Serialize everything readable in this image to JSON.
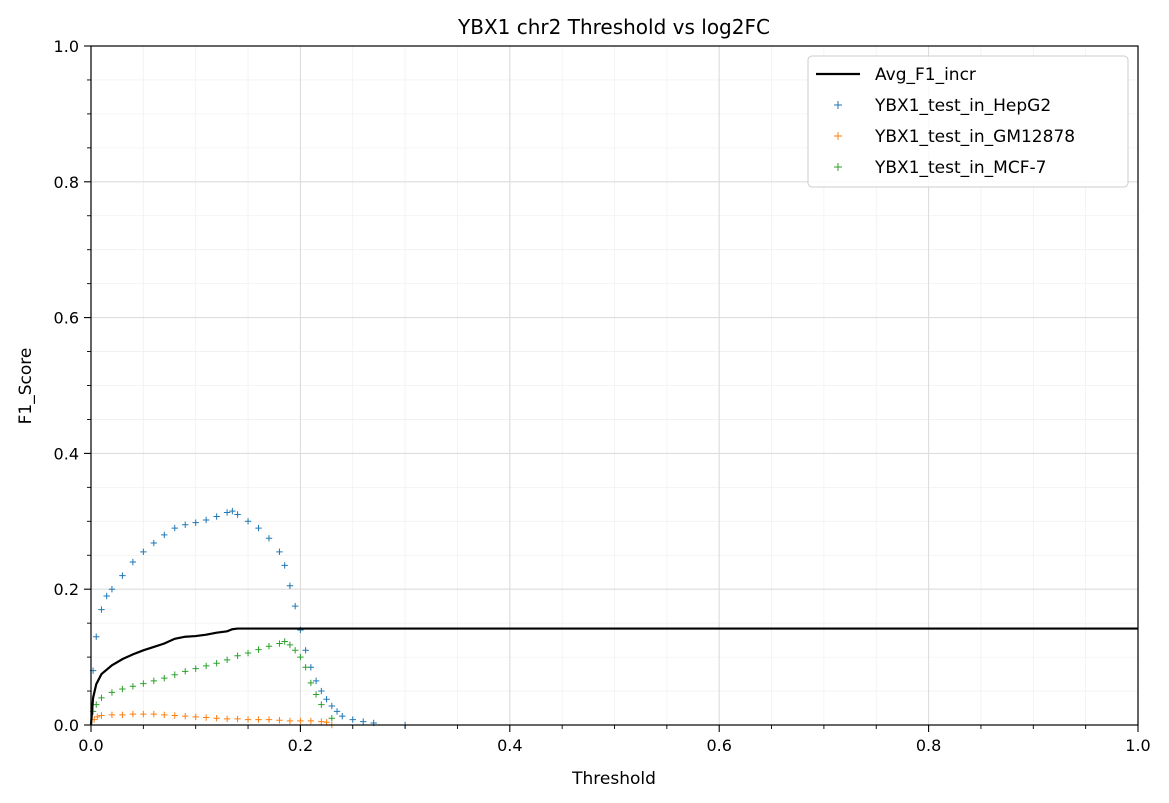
{
  "chart_data": {
    "type": "scatter",
    "title": "YBX1 chr2 Threshold vs log2FC",
    "xlabel": "Threshold",
    "ylabel": "F1_Score",
    "xlim": [
      0.0,
      1.0
    ],
    "ylim": [
      0.0,
      1.0
    ],
    "grid": "on (major and minor)",
    "legend_position": "top-right",
    "xticks": [
      "0.0",
      "0.2",
      "0.4",
      "0.6",
      "0.8",
      "1.0"
    ],
    "yticks": [
      "0.0",
      "0.2",
      "0.4",
      "0.6",
      "0.8",
      "1.0"
    ],
    "legend": [
      {
        "label": "Avg_F1_incr",
        "kind": "line"
      },
      {
        "label": "YBX1_test_in_HepG2",
        "kind": "marker"
      },
      {
        "label": "YBX1_test_in_GM12878",
        "kind": "marker"
      },
      {
        "label": "YBX1_test_in_MCF-7",
        "kind": "marker"
      }
    ],
    "series": [
      {
        "name": "Avg_F1_incr",
        "style": "line",
        "color": "#000000",
        "x": [
          0.0,
          0.002,
          0.005,
          0.01,
          0.02,
          0.03,
          0.04,
          0.05,
          0.06,
          0.07,
          0.08,
          0.09,
          0.1,
          0.11,
          0.12,
          0.13,
          0.135,
          0.14,
          0.2,
          0.4,
          0.6,
          0.8,
          1.0
        ],
        "y": [
          0.0,
          0.04,
          0.06,
          0.075,
          0.088,
          0.097,
          0.104,
          0.11,
          0.115,
          0.12,
          0.127,
          0.13,
          0.131,
          0.133,
          0.136,
          0.138,
          0.141,
          0.142,
          0.142,
          0.142,
          0.142,
          0.142,
          0.142
        ]
      },
      {
        "name": "YBX1_test_in_HepG2",
        "style": "marker",
        "color": "#1f77b4",
        "x": [
          0.0,
          0.002,
          0.005,
          0.01,
          0.015,
          0.02,
          0.03,
          0.04,
          0.05,
          0.06,
          0.07,
          0.08,
          0.09,
          0.1,
          0.11,
          0.12,
          0.13,
          0.135,
          0.14,
          0.15,
          0.16,
          0.17,
          0.18,
          0.185,
          0.19,
          0.195,
          0.2,
          0.205,
          0.21,
          0.215,
          0.22,
          0.225,
          0.23,
          0.235,
          0.24,
          0.25,
          0.26,
          0.27,
          0.3
        ],
        "y": [
          0.0,
          0.08,
          0.13,
          0.17,
          0.19,
          0.2,
          0.22,
          0.24,
          0.255,
          0.268,
          0.28,
          0.29,
          0.295,
          0.298,
          0.302,
          0.307,
          0.313,
          0.315,
          0.31,
          0.3,
          0.29,
          0.275,
          0.255,
          0.235,
          0.205,
          0.175,
          0.14,
          0.11,
          0.085,
          0.065,
          0.05,
          0.038,
          0.028,
          0.02,
          0.013,
          0.008,
          0.005,
          0.003,
          0.0
        ]
      },
      {
        "name": "YBX1_test_in_GM12878",
        "style": "marker",
        "color": "#ff7f0e",
        "x": [
          0.0,
          0.003,
          0.006,
          0.01,
          0.02,
          0.03,
          0.04,
          0.05,
          0.06,
          0.07,
          0.08,
          0.09,
          0.1,
          0.11,
          0.12,
          0.13,
          0.14,
          0.15,
          0.16,
          0.17,
          0.18,
          0.19,
          0.2,
          0.21,
          0.22,
          0.225,
          0.23
        ],
        "y": [
          0.0,
          0.008,
          0.012,
          0.014,
          0.015,
          0.015,
          0.016,
          0.016,
          0.016,
          0.015,
          0.014,
          0.013,
          0.012,
          0.011,
          0.01,
          0.009,
          0.009,
          0.008,
          0.008,
          0.008,
          0.007,
          0.006,
          0.006,
          0.006,
          0.005,
          0.004,
          0.0
        ]
      },
      {
        "name": "YBX1_test_in_MCF-7",
        "style": "marker",
        "color": "#2ca02c",
        "x": [
          0.0,
          0.002,
          0.005,
          0.01,
          0.02,
          0.03,
          0.04,
          0.05,
          0.06,
          0.07,
          0.08,
          0.09,
          0.1,
          0.11,
          0.12,
          0.13,
          0.14,
          0.15,
          0.16,
          0.17,
          0.18,
          0.185,
          0.19,
          0.195,
          0.2,
          0.205,
          0.21,
          0.215,
          0.22,
          0.23
        ],
        "y": [
          0.0,
          0.02,
          0.03,
          0.04,
          0.048,
          0.053,
          0.057,
          0.061,
          0.065,
          0.069,
          0.074,
          0.079,
          0.083,
          0.087,
          0.091,
          0.096,
          0.102,
          0.106,
          0.111,
          0.116,
          0.12,
          0.123,
          0.118,
          0.11,
          0.1,
          0.085,
          0.062,
          0.045,
          0.03,
          0.01
        ]
      }
    ]
  }
}
